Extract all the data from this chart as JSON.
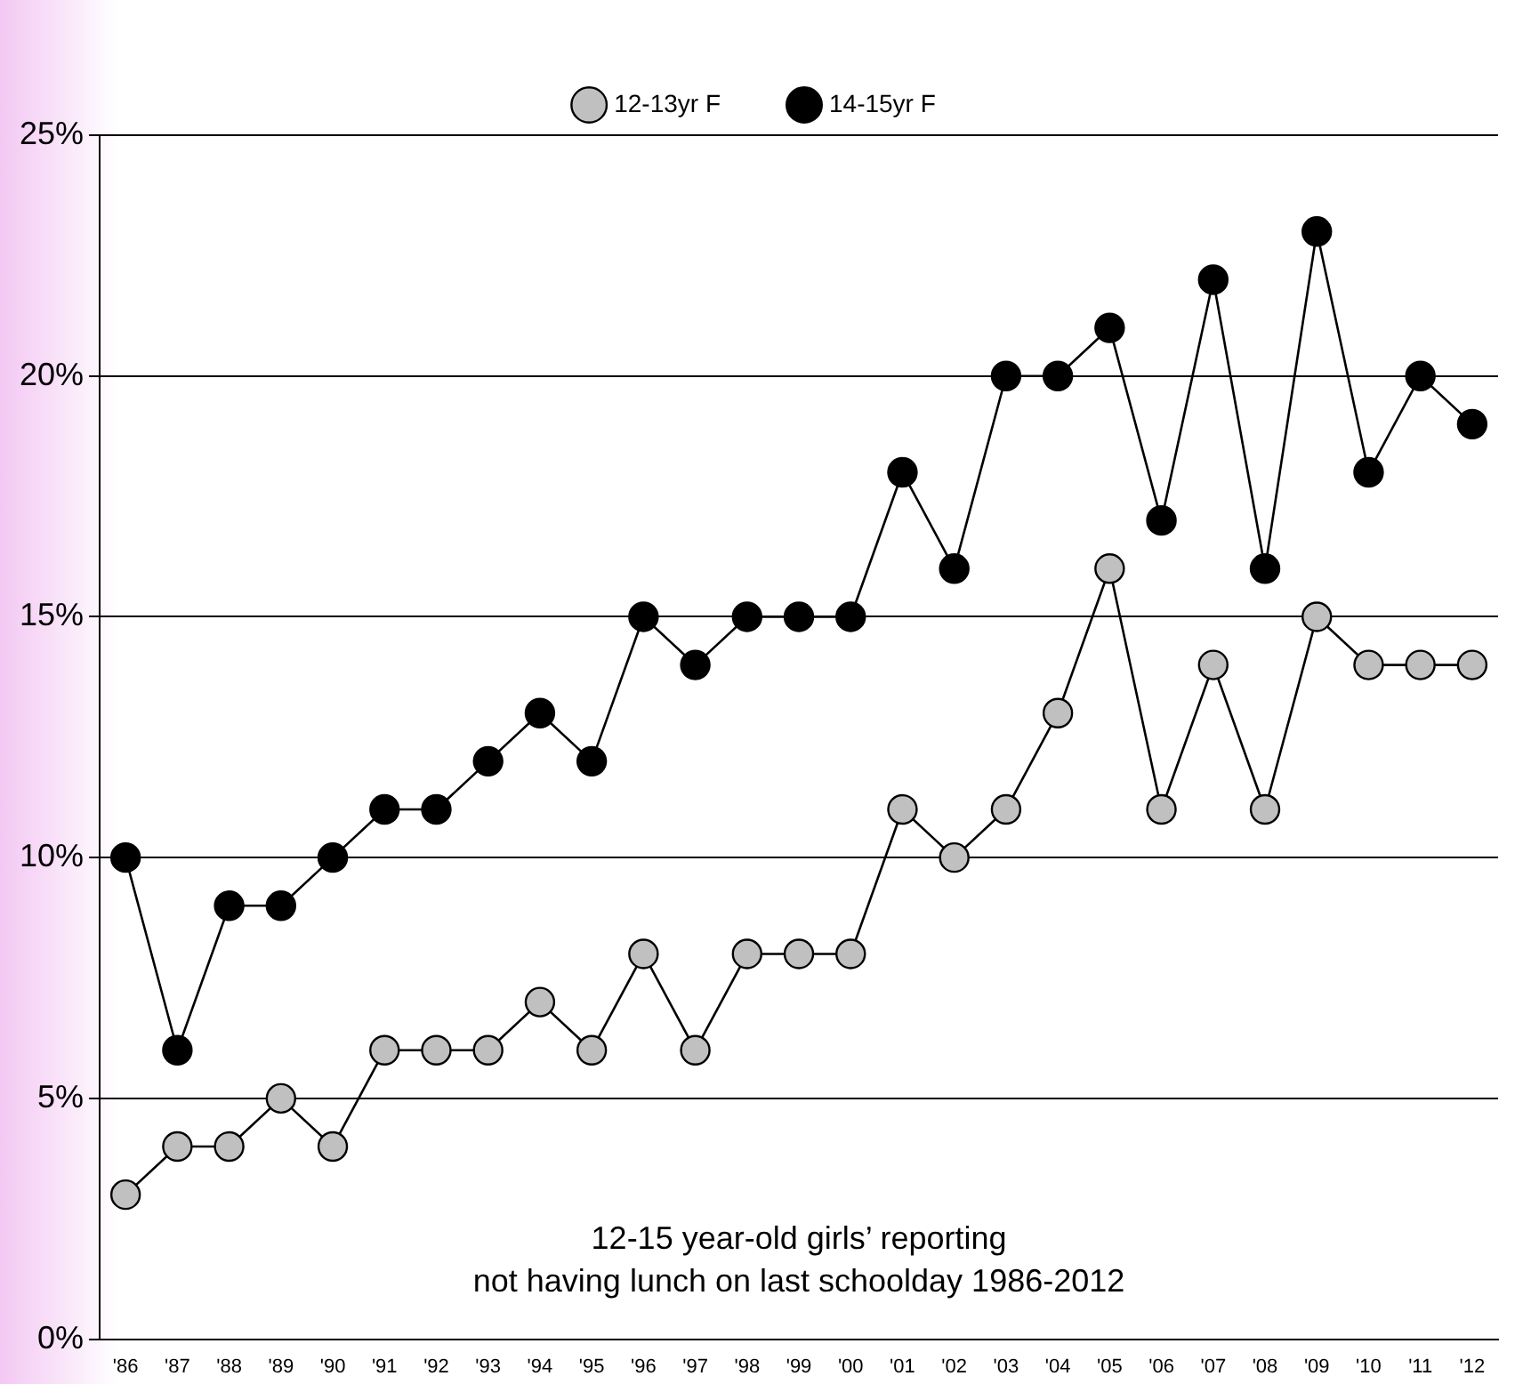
{
  "chart_data": {
    "type": "line",
    "categories": [
      "'86",
      "'87",
      "'88",
      "'89",
      "'90",
      "'91",
      "'92",
      "'93",
      "'94",
      "'95",
      "'96",
      "'97",
      "'98",
      "'99",
      "'00",
      "'01",
      "'02",
      "'03",
      "'04",
      "'05",
      "'06",
      "'07",
      "'08",
      "'09",
      "'10",
      "'11",
      "'12"
    ],
    "series": [
      {
        "name": "12-13yr F",
        "color": "#c0c0c0",
        "values": [
          3,
          4,
          4,
          5,
          4,
          6,
          6,
          6,
          7,
          6,
          8,
          6,
          8,
          8,
          8,
          11,
          10,
          11,
          13,
          16,
          11,
          14,
          11,
          15,
          14,
          14,
          14
        ]
      },
      {
        "name": "14-15yr F",
        "color": "#000000",
        "values": [
          10,
          6,
          9,
          9,
          10,
          11,
          11,
          12,
          13,
          12,
          15,
          14,
          15,
          15,
          15,
          18,
          16,
          20,
          20,
          21,
          17,
          22,
          16,
          23,
          18,
          20,
          19
        ]
      }
    ],
    "ylim": [
      0,
      25
    ],
    "yticks": [
      {
        "value": 0,
        "label": "0%"
      },
      {
        "value": 5,
        "label": "5%"
      },
      {
        "value": 10,
        "label": "10%"
      },
      {
        "value": 15,
        "label": "15%"
      },
      {
        "value": 20,
        "label": "20%"
      },
      {
        "value": 25,
        "label": "25%"
      }
    ],
    "grid": "y",
    "legend": "top",
    "marker": "circle",
    "line_style": "solid",
    "annotations": [
      "12-15 year-old girls’ reporting\nnot having lunch on last schoolday 1986-2012"
    ]
  }
}
